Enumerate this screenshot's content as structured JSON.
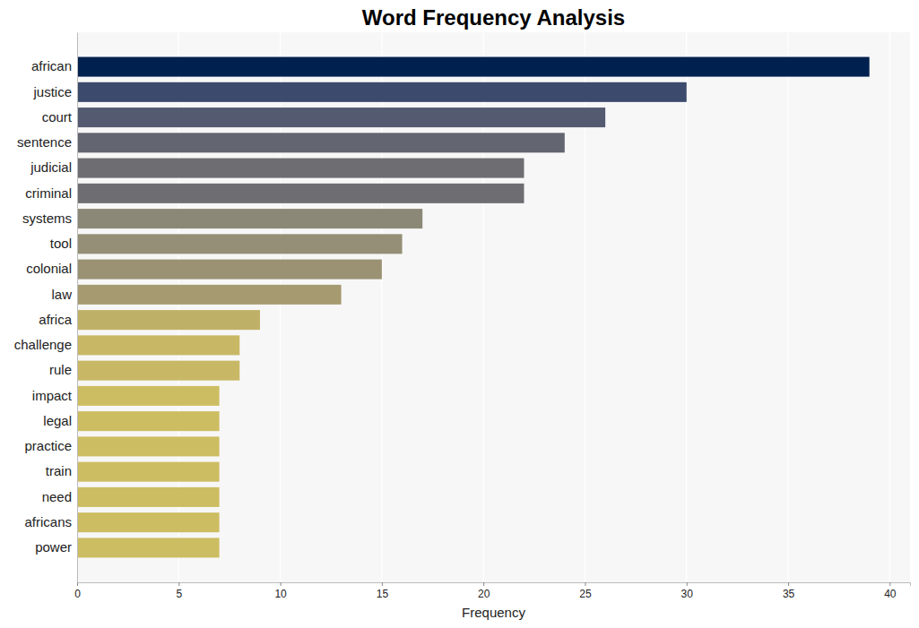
{
  "chart_data": {
    "type": "bar",
    "orientation": "horizontal",
    "title": "Word Frequency Analysis",
    "xlabel": "Frequency",
    "categories": [
      "african",
      "justice",
      "court",
      "sentence",
      "judicial",
      "criminal",
      "systems",
      "tool",
      "colonial",
      "law",
      "africa",
      "challenge",
      "rule",
      "impact",
      "legal",
      "practice",
      "train",
      "need",
      "africans",
      "power"
    ],
    "values": [
      39,
      30,
      26,
      24,
      22,
      22,
      17,
      16,
      15,
      13,
      9,
      8,
      8,
      7,
      7,
      7,
      7,
      7,
      7,
      7
    ],
    "colors": [
      "#00204f",
      "#3b4a6d",
      "#545a6f",
      "#636571",
      "#6e6e72",
      "#6e6e72",
      "#8c8877",
      "#958f77",
      "#9a9273",
      "#a69a70",
      "#bfb067",
      "#c8b865",
      "#c8b865",
      "#cdbd62",
      "#cdbd62",
      "#cdbd62",
      "#cdbd62",
      "#cdbd62",
      "#cdbd62",
      "#cdbd62"
    ],
    "xlim": [
      0,
      41
    ],
    "xticks": [
      0,
      5,
      10,
      15,
      20,
      25,
      30,
      35,
      40
    ],
    "grid": true
  }
}
